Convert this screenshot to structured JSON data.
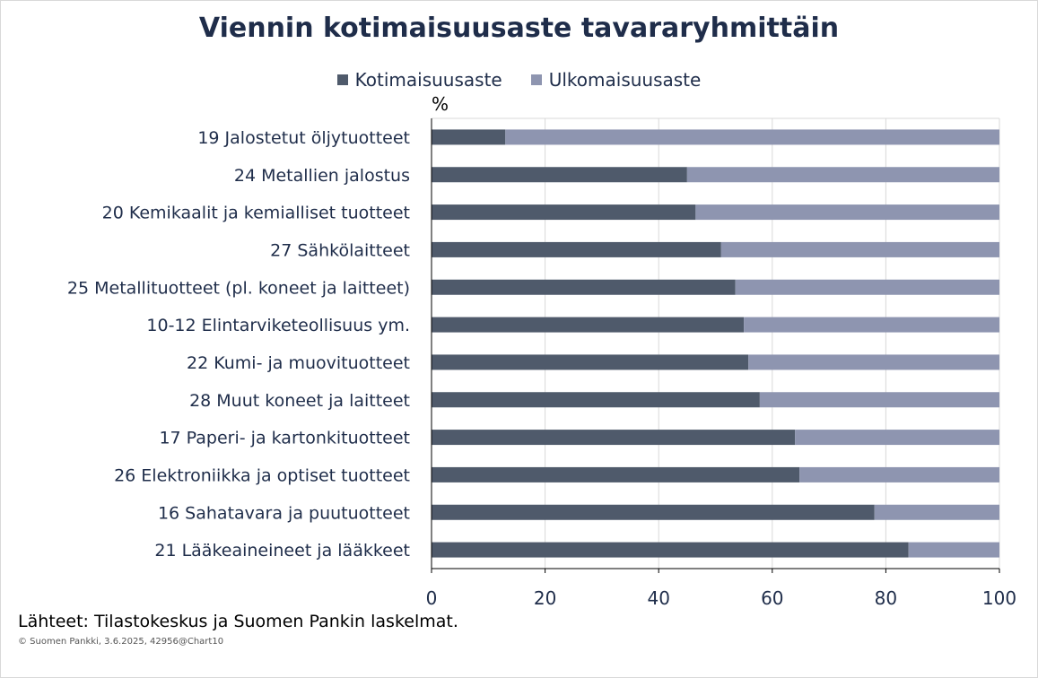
{
  "chart_data": {
    "type": "bar",
    "orientation": "horizontal",
    "stacked": true,
    "title": "Viennin kotimaisuusaste tavararyhmittäin",
    "unit_label": "%",
    "categories": [
      "19 Jalostetut öljytuotteet",
      "24 Metallien jalostus",
      "20 Kemikaalit ja kemialliset tuotteet",
      "27 Sähkölaitteet",
      "25 Metallituotteet (pl. koneet ja laitteet)",
      "10-12 Elintarviketeollisuus ym.",
      "22 Kumi- ja muovituotteet",
      "28 Muut koneet ja laitteet",
      "17 Paperi- ja kartonkituotteet",
      "26 Elektroniikka ja optiset tuotteet",
      "16 Sahatavara ja puutuotteet",
      "21 Lääkeaineineet ja lääkkeet"
    ],
    "series": [
      {
        "name": "Kotimaisuusaste",
        "color": "#4f5a6b",
        "values": [
          13,
          45,
          46.5,
          51,
          53.5,
          55,
          55.8,
          57.8,
          64,
          64.8,
          78,
          84
        ]
      },
      {
        "name": "Ulkomaisuusaste",
        "color": "#8e95b0",
        "values": [
          87,
          55,
          53.5,
          49,
          46.5,
          45,
          44.2,
          42.2,
          36,
          35.2,
          22,
          16
        ]
      }
    ],
    "x_ticks": [
      "0",
      "20",
      "40",
      "60",
      "80",
      "100"
    ],
    "xlim": [
      0,
      100
    ],
    "grid": true,
    "legend_position": "top"
  },
  "footer": {
    "source": "Lähteet: Tilastokeskus ja Suomen Pankin laskelmat.",
    "copyright": "© Suomen Pankki, 3.6.2025, 42956@Chart10"
  }
}
